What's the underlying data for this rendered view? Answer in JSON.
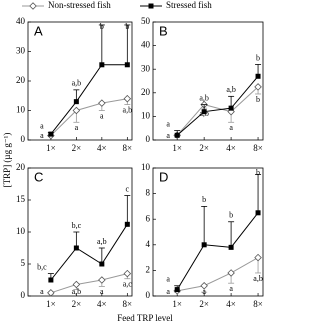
{
  "chart_data": [
    {
      "type": "line",
      "title": "A",
      "ylabel": "[TRP] (µg g⁻¹)",
      "xlabel": "Feed TRP level",
      "categories": [
        "1×",
        "2×",
        "4×",
        "8×"
      ],
      "ylim": [
        0,
        40
      ],
      "yticks": [
        0,
        10,
        20,
        30,
        40
      ],
      "series": [
        {
          "name": "Non-stressed fish",
          "color": "#999999",
          "marker": "diamond-open",
          "error_direction": "down",
          "values": [
            1.5,
            10,
            12.5,
            14
          ],
          "errors": [
            0,
            4,
            2.5,
            2
          ],
          "labels": [
            "a",
            "a",
            "a",
            "a,b"
          ]
        },
        {
          "name": "Stressed fish",
          "color": "#000000",
          "marker": "square",
          "error_direction": "up",
          "values": [
            2,
            13,
            25.5,
            25.5
          ],
          "errors": [
            0.5,
            4,
            13.5,
            13.5
          ],
          "labels": [
            "a",
            "a,b",
            "b",
            "b"
          ]
        }
      ]
    },
    {
      "type": "line",
      "title": "B",
      "categories": [
        "1×",
        "2×",
        "4×",
        "8×"
      ],
      "ylim": [
        0,
        50
      ],
      "yticks": [
        0,
        10,
        20,
        30,
        40,
        50
      ],
      "series": [
        {
          "color": "#999999",
          "marker": "diamond-open",
          "error_direction": "down",
          "values": [
            2,
            15,
            12,
            22.5
          ],
          "errors": [
            0.5,
            1.5,
            4.5,
            3
          ],
          "labels": [
            "a",
            "a,b",
            "a",
            "b"
          ]
        },
        {
          "color": "#000000",
          "marker": "square",
          "error_direction": "up",
          "values": [
            2,
            12,
            13.5,
            27
          ],
          "errors": [
            2,
            3,
            5,
            5
          ],
          "labels": [
            "a",
            "a,b",
            "a,b",
            "b"
          ]
        }
      ]
    },
    {
      "type": "line",
      "title": "C",
      "categories": [
        "1×",
        "2×",
        "4×",
        "8×"
      ],
      "ylim": [
        0,
        20
      ],
      "yticks": [
        0,
        5,
        10,
        15,
        20
      ],
      "series": [
        {
          "color": "#999999",
          "marker": "diamond-open",
          "error_direction": "down",
          "values": [
            0.5,
            1.8,
            2.5,
            3.5
          ],
          "errors": [
            0.2,
            0.8,
            1,
            0.8
          ],
          "labels": [
            "a",
            "a,b",
            "a",
            "a,c"
          ]
        },
        {
          "color": "#000000",
          "marker": "square",
          "error_direction": "up",
          "values": [
            2.5,
            7.5,
            5,
            11.2
          ],
          "errors": [
            1,
            2.5,
            2.5,
            4.5
          ],
          "labels": [
            "b,c",
            "b,c",
            "a,b",
            "c"
          ]
        }
      ]
    },
    {
      "type": "line",
      "title": "D",
      "categories": [
        "1×",
        "2×",
        "4×",
        "8×"
      ],
      "ylim": [
        0,
        10
      ],
      "yticks": [
        0,
        2,
        4,
        6,
        8,
        10
      ],
      "series": [
        {
          "color": "#999999",
          "marker": "diamond-open",
          "error_direction": "down",
          "values": [
            0.4,
            0.8,
            1.8,
            3
          ],
          "errors": [
            0.1,
            0.5,
            0.8,
            1.2
          ],
          "labels": [
            "a",
            "a",
            "a",
            "a,b"
          ]
        },
        {
          "color": "#000000",
          "marker": "square",
          "error_direction": "up",
          "values": [
            0.5,
            4,
            3.8,
            6.5
          ],
          "errors": [
            0.3,
            3,
            2,
            3
          ],
          "labels": [
            "a",
            "b",
            "b",
            "b"
          ]
        }
      ]
    }
  ]
}
